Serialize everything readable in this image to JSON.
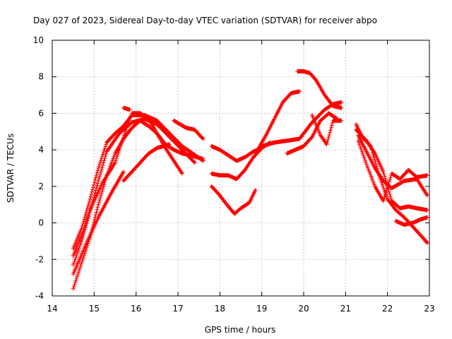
{
  "chart_data": {
    "type": "scatter",
    "title": "Day 027 of 2023, Sidereal Day-to-day VTEC variation (SDTVAR) for receiver abpo",
    "xlabel": "GPS time / hours",
    "ylabel": "SDTVAR / TECUs",
    "xlim": [
      14,
      23
    ],
    "ylim": [
      -4,
      10
    ],
    "xticks": [
      "14",
      "15",
      "16",
      "17",
      "18",
      "19",
      "20",
      "21",
      "22",
      "23"
    ],
    "yticks": [
      "-4",
      "-2",
      "0",
      "2",
      "4",
      "6",
      "8",
      "10"
    ],
    "grid": true,
    "marker": "+",
    "color": "#ff0000",
    "series": [
      {
        "name": "s1",
        "x": [
          14.5,
          14.7,
          14.9,
          15.1,
          15.3,
          15.5,
          15.7,
          15.9,
          16.1,
          16.3,
          16.5,
          16.7,
          16.9,
          17.1,
          17.3,
          17.6
        ],
        "y": [
          -3.6,
          -2.2,
          -0.8,
          1.0,
          2.6,
          3.8,
          4.6,
          5.2,
          5.6,
          5.3,
          4.9,
          4.3,
          4.0,
          3.8,
          3.7,
          3.5
        ]
      },
      {
        "name": "s2",
        "x": [
          14.5,
          14.7,
          14.9,
          15.1,
          15.3,
          15.6,
          15.9,
          16.2,
          16.5,
          16.8,
          17.1,
          17.4
        ],
        "y": [
          -2.3,
          -1.0,
          0.6,
          2.3,
          3.9,
          4.9,
          5.5,
          5.7,
          5.4,
          4.7,
          4.0,
          3.3
        ]
      },
      {
        "name": "s3",
        "x": [
          14.5,
          14.7,
          14.9,
          15.1,
          15.3,
          15.5,
          15.7,
          15.9,
          16.2,
          16.5,
          16.8,
          17.1,
          17.6
        ],
        "y": [
          -1.4,
          -0.3,
          1.3,
          3.0,
          4.4,
          4.9,
          5.3,
          5.9,
          5.9,
          5.6,
          4.9,
          4.2,
          3.4
        ]
      },
      {
        "name": "s4",
        "x": [
          14.5,
          14.7,
          14.9,
          15.2,
          15.5,
          15.7,
          15.9,
          16.1,
          16.3,
          16.5,
          16.7,
          16.9,
          17.1
        ],
        "y": [
          -1.8,
          -0.7,
          0.7,
          2.2,
          3.3,
          4.7,
          6.0,
          6.0,
          5.7,
          4.9,
          4.1,
          3.4,
          2.7
        ]
      },
      {
        "name": "s5",
        "x": [
          14.5,
          14.8,
          15.1,
          15.4,
          15.7
        ],
        "y": [
          -2.8,
          -1.2,
          0.3,
          1.6,
          2.8
        ]
      },
      {
        "name": "s6",
        "x": [
          15.7,
          15.9,
          16.1,
          16.3,
          16.5,
          16.8
        ],
        "y": [
          2.3,
          2.8,
          3.3,
          3.8,
          4.1,
          4.3
        ]
      },
      {
        "name": "s7",
        "x": [
          15.7,
          15.85
        ],
        "y": [
          6.3,
          6.2
        ]
      },
      {
        "name": "s8",
        "x": [
          16.9,
          17.2,
          17.4,
          17.6
        ],
        "y": [
          5.6,
          5.2,
          5.1,
          4.6
        ]
      },
      {
        "name": "s9",
        "x": [
          17.8,
          18.0,
          18.2,
          18.4,
          18.6,
          18.8,
          19.0,
          19.2
        ],
        "y": [
          4.2,
          4.0,
          3.7,
          3.4,
          3.6,
          3.9,
          4.1,
          4.4
        ]
      },
      {
        "name": "s10",
        "x": [
          17.8,
          18.0,
          18.2,
          18.4,
          18.6,
          18.8,
          19.0
        ],
        "y": [
          2.7,
          2.6,
          2.6,
          2.4,
          2.9,
          3.6,
          4.1
        ]
      },
      {
        "name": "s11",
        "x": [
          17.8,
          18.0,
          18.2,
          18.35,
          18.5,
          18.7,
          18.85
        ],
        "y": [
          2.0,
          1.5,
          0.9,
          0.5,
          0.8,
          1.1,
          1.8
        ]
      },
      {
        "name": "s12",
        "x": [
          18.9,
          19.1,
          19.3,
          19.5,
          19.7,
          19.9
        ],
        "y": [
          4.0,
          4.8,
          5.7,
          6.6,
          7.1,
          7.2
        ]
      },
      {
        "name": "s13",
        "x": [
          19.85,
          20.0,
          20.15,
          20.3,
          20.5,
          20.7,
          20.9
        ],
        "y": [
          8.3,
          8.3,
          8.2,
          7.8,
          7.0,
          6.4,
          6.3
        ]
      },
      {
        "name": "s14",
        "x": [
          19.0,
          19.3,
          19.6,
          19.9,
          20.2,
          20.5,
          20.7,
          20.9
        ],
        "y": [
          4.2,
          4.4,
          4.5,
          4.6,
          5.5,
          6.2,
          6.5,
          6.6
        ]
      },
      {
        "name": "s15",
        "x": [
          19.6,
          19.8,
          20.0,
          20.2,
          20.4,
          20.6,
          20.8
        ],
        "y": [
          3.8,
          4.0,
          4.2,
          4.7,
          5.6,
          6.0,
          5.7
        ]
      },
      {
        "name": "s16",
        "x": [
          20.2,
          20.4,
          20.55,
          20.7,
          20.9
        ],
        "y": [
          5.9,
          4.8,
          4.3,
          5.6,
          5.6
        ]
      },
      {
        "name": "s17",
        "x": [
          21.25,
          21.4,
          21.6,
          21.8,
          22.0,
          22.2,
          22.4,
          22.6,
          22.8,
          22.95
        ],
        "y": [
          5.4,
          4.7,
          4.2,
          2.6,
          1.3,
          0.7,
          0.3,
          -0.2,
          -0.7,
          -1.1
        ]
      },
      {
        "name": "s18",
        "x": [
          21.25,
          21.5,
          21.7,
          21.9,
          22.1,
          22.3,
          22.5,
          22.7,
          22.95
        ],
        "y": [
          5.1,
          4.5,
          3.8,
          2.8,
          1.2,
          0.8,
          0.9,
          0.8,
          0.7
        ]
      },
      {
        "name": "s19",
        "x": [
          21.3,
          21.5,
          21.7,
          21.9,
          22.1,
          22.4,
          22.7,
          22.95
        ],
        "y": [
          4.8,
          3.9,
          3.0,
          2.3,
          1.9,
          2.3,
          2.4,
          1.5
        ]
      },
      {
        "name": "s20",
        "x": [
          21.3,
          21.5,
          21.7,
          21.9,
          22.1,
          22.3,
          22.5,
          22.7,
          22.95
        ],
        "y": [
          4.5,
          3.2,
          2.0,
          1.2,
          2.7,
          2.4,
          2.9,
          2.5,
          2.6
        ]
      },
      {
        "name": "s21",
        "x": [
          22.2,
          22.4,
          22.6,
          22.8,
          22.95
        ],
        "y": [
          0.1,
          -0.1,
          0.0,
          0.2,
          0.3
        ]
      }
    ]
  }
}
